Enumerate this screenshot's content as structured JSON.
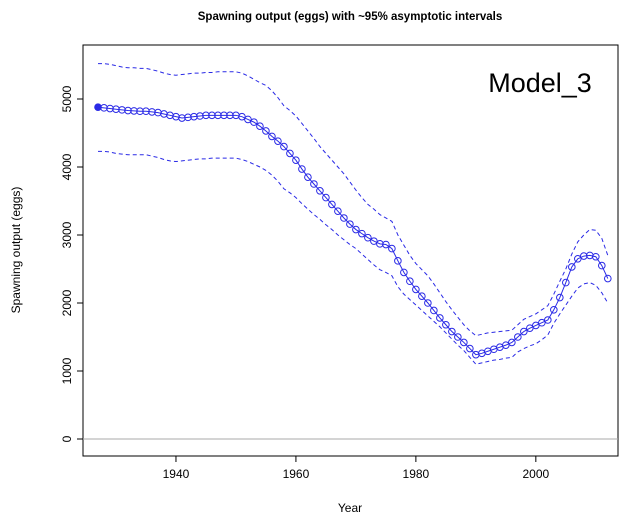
{
  "chart_data": {
    "type": "line",
    "title": "Spawning output (eggs) with ~95% asymptotic intervals",
    "annotation": "Model_3",
    "x_label": "Year",
    "y_label": "Spawning output (eggs)",
    "x": [
      1927,
      1928,
      1929,
      1930,
      1931,
      1932,
      1933,
      1934,
      1935,
      1936,
      1937,
      1938,
      1939,
      1940,
      1941,
      1942,
      1943,
      1944,
      1945,
      1946,
      1947,
      1948,
      1949,
      1950,
      1951,
      1952,
      1953,
      1954,
      1955,
      1956,
      1957,
      1958,
      1959,
      1960,
      1961,
      1962,
      1963,
      1964,
      1965,
      1966,
      1967,
      1968,
      1969,
      1970,
      1971,
      1972,
      1973,
      1974,
      1975,
      1976,
      1977,
      1978,
      1979,
      1980,
      1981,
      1982,
      1983,
      1984,
      1985,
      1986,
      1987,
      1988,
      1989,
      1990,
      1991,
      1992,
      1993,
      1994,
      1995,
      1996,
      1997,
      1998,
      1999,
      2000,
      2001,
      2002,
      2003,
      2004,
      2005,
      2006,
      2007,
      2008,
      2009,
      2010,
      2011,
      2012
    ],
    "series": [
      {
        "color": "#2a2ae6",
        "style": "points-line",
        "values": [
          4880,
          4870,
          4860,
          4850,
          4840,
          4830,
          4825,
          4820,
          4820,
          4810,
          4800,
          4780,
          4760,
          4740,
          4720,
          4730,
          4740,
          4750,
          4760,
          4760,
          4760,
          4760,
          4760,
          4760,
          4740,
          4700,
          4660,
          4600,
          4530,
          4450,
          4380,
          4300,
          4200,
          4100,
          3970,
          3850,
          3750,
          3650,
          3550,
          3450,
          3350,
          3250,
          3160,
          3080,
          3020,
          2960,
          2910,
          2870,
          2860,
          2800,
          2620,
          2450,
          2320,
          2200,
          2100,
          2000,
          1890,
          1780,
          1680,
          1580,
          1500,
          1420,
          1330,
          1240,
          1260,
          1290,
          1320,
          1350,
          1380,
          1420,
          1500,
          1580,
          1630,
          1670,
          1710,
          1750,
          1900,
          2080,
          2300,
          2530,
          2650,
          2690,
          2700,
          2680,
          2550,
          2360
        ]
      },
      {
        "color": "#2a2ae6",
        "style": "dashed",
        "values": [
          5520,
          5520,
          5510,
          5490,
          5470,
          5460,
          5460,
          5450,
          5450,
          5430,
          5410,
          5380,
          5360,
          5350,
          5360,
          5370,
          5380,
          5380,
          5390,
          5390,
          5400,
          5400,
          5400,
          5400,
          5380,
          5340,
          5290,
          5240,
          5200,
          5120,
          5020,
          4900,
          4830,
          4750,
          4640,
          4530,
          4420,
          4300,
          4200,
          4100,
          4000,
          3900,
          3780,
          3660,
          3550,
          3450,
          3380,
          3300,
          3250,
          3200,
          3000,
          2850,
          2700,
          2580,
          2490,
          2400,
          2280,
          2150,
          2020,
          1900,
          1790,
          1680,
          1590,
          1520,
          1540,
          1560,
          1570,
          1580,
          1590,
          1600,
          1680,
          1760,
          1800,
          1840,
          1900,
          1960,
          2130,
          2320,
          2500,
          2720,
          2900,
          3000,
          3080,
          3070,
          2950,
          2700
        ]
      },
      {
        "color": "#2a2ae6",
        "style": "dashed",
        "values": [
          4230,
          4230,
          4220,
          4200,
          4190,
          4180,
          4180,
          4180,
          4180,
          4160,
          4140,
          4110,
          4090,
          4080,
          4090,
          4100,
          4110,
          4120,
          4120,
          4130,
          4130,
          4130,
          4130,
          4130,
          4110,
          4080,
          4040,
          4000,
          3950,
          3880,
          3790,
          3680,
          3620,
          3550,
          3460,
          3380,
          3300,
          3230,
          3150,
          3080,
          3000,
          2930,
          2860,
          2800,
          2720,
          2640,
          2560,
          2490,
          2450,
          2400,
          2240,
          2130,
          2050,
          1970,
          1890,
          1810,
          1730,
          1650,
          1560,
          1470,
          1380,
          1300,
          1200,
          1100,
          1120,
          1140,
          1160,
          1170,
          1190,
          1200,
          1280,
          1330,
          1370,
          1400,
          1460,
          1530,
          1700,
          1840,
          1970,
          2100,
          2220,
          2280,
          2300,
          2260,
          2150,
          2000
        ]
      }
    ],
    "xlim": [
      1924.5,
      2013.7
    ],
    "ylim": [
      -250,
      5794
    ],
    "xticks": [
      1940,
      1960,
      1980,
      2000
    ],
    "yticks": [
      0,
      1000,
      2000,
      3000,
      4000,
      5000
    ],
    "reference_line": 0,
    "grid": false
  }
}
